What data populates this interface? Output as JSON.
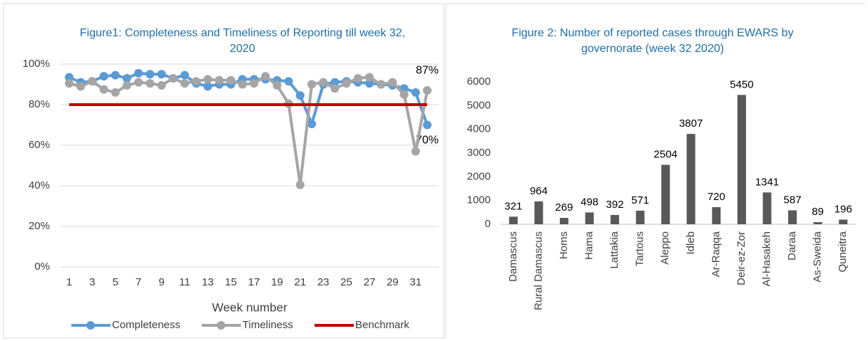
{
  "chart_data": [
    {
      "type": "line",
      "title": "Figure1: Completeness and Timeliness of Reporting till week 32, 2020",
      "x_label": "Week number",
      "x": [
        1,
        2,
        3,
        4,
        5,
        6,
        7,
        8,
        9,
        10,
        11,
        12,
        13,
        14,
        15,
        16,
        17,
        18,
        19,
        20,
        21,
        22,
        23,
        24,
        25,
        26,
        27,
        28,
        29,
        30,
        31,
        32
      ],
      "xlim": [
        1,
        32
      ],
      "xticks": [
        1,
        3,
        5,
        7,
        9,
        11,
        13,
        15,
        17,
        19,
        21,
        23,
        25,
        27,
        29,
        31
      ],
      "ylim": [
        0,
        100
      ],
      "yticks": [
        {
          "value": 0,
          "label": "0%"
        },
        {
          "value": 20,
          "label": "20%"
        },
        {
          "value": 40,
          "label": "40%"
        },
        {
          "value": 60,
          "label": "60%"
        },
        {
          "value": 80,
          "label": "80%"
        },
        {
          "value": 100,
          "label": "100%"
        }
      ],
      "grid": true,
      "legend": "bottom",
      "series": [
        {
          "name": "Completeness",
          "color": "#5b9bd5",
          "marker": "circle",
          "values": [
            93.5,
            91,
            91.5,
            94,
            94.5,
            93,
            95.5,
            95,
            95,
            93,
            94.5,
            90.5,
            89,
            90,
            90,
            92.5,
            92.5,
            92.5,
            92,
            91.5,
            84.5,
            70.5,
            90,
            91,
            91.5,
            91,
            90.5,
            90,
            89.5,
            88,
            86,
            70
          ],
          "value_labels": [
            null,
            null,
            null,
            null,
            null,
            null,
            null,
            null,
            null,
            null,
            null,
            null,
            null,
            null,
            null,
            null,
            null,
            null,
            null,
            null,
            null,
            null,
            null,
            null,
            null,
            null,
            null,
            null,
            null,
            null,
            null,
            "70%"
          ]
        },
        {
          "name": "Timeliness",
          "color": "#a5a5a5",
          "marker": "circle",
          "values": [
            90.5,
            89,
            91.5,
            87.5,
            86,
            89.5,
            91,
            90.5,
            89.5,
            93,
            90.5,
            91.5,
            92.5,
            92,
            92,
            90,
            90.5,
            94,
            89.5,
            80.5,
            40.5,
            90,
            91,
            88,
            90.5,
            93,
            93.5,
            90,
            91,
            85,
            57,
            87
          ],
          "value_labels": [
            null,
            null,
            null,
            null,
            null,
            null,
            null,
            null,
            null,
            null,
            null,
            null,
            null,
            null,
            null,
            null,
            null,
            null,
            null,
            null,
            null,
            null,
            null,
            null,
            null,
            null,
            null,
            null,
            null,
            null,
            null,
            "87%"
          ]
        },
        {
          "name": "Benchmark",
          "color": "#c00000",
          "values": [
            80,
            80,
            80,
            80,
            80,
            80,
            80,
            80,
            80,
            80,
            80,
            80,
            80,
            80,
            80,
            80,
            80,
            80,
            80,
            80,
            80,
            80,
            80,
            80,
            80,
            80,
            80,
            80,
            80,
            80,
            80,
            80
          ]
        }
      ]
    },
    {
      "type": "bar",
      "title": "Figure 2: Number of reported cases through EWARS by governorate (week 32 2020)",
      "categories": [
        "Damascus",
        "Rural Damascus",
        "Homs",
        "Hama",
        "Lattakia",
        "Tartous",
        "Aleppo",
        "Idleb",
        "Ar-Raqqa",
        "Deir-ez-Zor",
        "Al-Hasakeh",
        "Daraa",
        "As-Sweida",
        "Quneitra"
      ],
      "values": [
        321,
        964,
        269,
        498,
        392,
        571,
        2504,
        3807,
        720,
        5450,
        1341,
        587,
        89,
        196
      ],
      "color": "#595959",
      "ylim": [
        0,
        6000
      ],
      "yticks": [
        0,
        1000,
        2000,
        3000,
        4000,
        5000,
        6000
      ],
      "grid": false
    }
  ]
}
